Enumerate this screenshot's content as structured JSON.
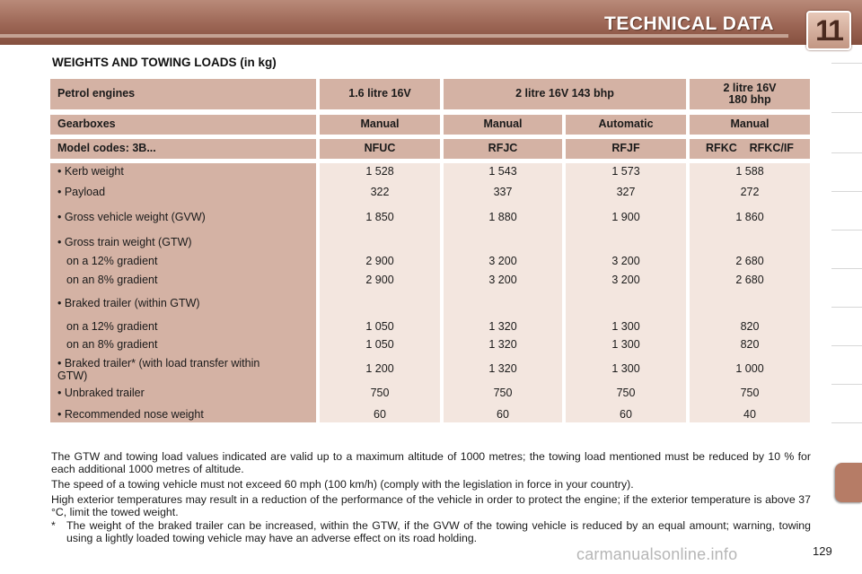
{
  "header": {
    "title": "TECHNICAL DATA",
    "chapter_number": "11"
  },
  "section_title": "WEIGHTS AND TOWING LOADS (in kg)",
  "table": {
    "engines_label": "Petrol engines",
    "engines": [
      "1.6 litre 16V",
      "2 litre 16V 143 bhp",
      "2 litre 16V\n180 bhp"
    ],
    "gearboxes_label": "Gearboxes",
    "gearboxes": [
      "Manual",
      "Manual",
      "Automatic",
      "Manual"
    ],
    "model_codes_label": "Model codes: 3B...",
    "model_codes": [
      "NFUC",
      "RFJC",
      "RFJF",
      "RFKC    RFKC/IF"
    ],
    "rows": [
      {
        "label": "• Kerb weight",
        "values": [
          "1 528",
          "1 543",
          "1 573",
          "1 588"
        ]
      },
      {
        "label": "• Payload",
        "values": [
          "322",
          "337",
          "327",
          "272"
        ]
      },
      {
        "label": "• Gross vehicle weight (GVW)",
        "values": [
          "1 850",
          "1 880",
          "1 900",
          "1 860"
        ]
      },
      {
        "label": "• Gross train weight (GTW)",
        "values": [
          "",
          "",
          "",
          ""
        ]
      },
      {
        "label": "on a 12% gradient",
        "values": [
          "2 900",
          "3 200",
          "3 200",
          "2 680"
        ]
      },
      {
        "label": "on an 8% gradient",
        "values": [
          "2 900",
          "3 200",
          "3 200",
          "2 680"
        ]
      },
      {
        "label": "• Braked trailer (within GTW)",
        "values": [
          "",
          "",
          "",
          ""
        ]
      },
      {
        "label": "on a 12% gradient",
        "values": [
          "1 050",
          "1 320",
          "1 300",
          "820"
        ]
      },
      {
        "label": "on an 8% gradient",
        "values": [
          "1 050",
          "1 320",
          "1 300",
          "820"
        ]
      },
      {
        "label": "• Braked trailer* (with load transfer within\nGTW)",
        "values": [
          "1 200",
          "1 320",
          "1 300",
          "1 000"
        ]
      },
      {
        "label": "• Unbraked trailer",
        "values": [
          "750",
          "750",
          "750",
          "750"
        ]
      },
      {
        "label": "• Recommended nose weight",
        "values": [
          "60",
          "60",
          "60",
          "40"
        ]
      }
    ]
  },
  "notes": [
    "The GTW and towing load values indicated are valid up to a maximum altitude of 1000 metres; the towing load mentioned must be reduced by 10 % for each additional 1000 metres of altitude.",
    "The speed of a towing vehicle must not exceed 60 mph (100 km/h) (comply with the legislation in force in your country).",
    "High exterior temperatures may result in a reduction of the performance of the vehicle in order to protect the engine; if the exterior temperature is above 37 °C, limit the towed weight."
  ],
  "footnote": {
    "marker": "*",
    "text": "The weight of the braked trailer can be increased, within the GTW, if the GVW of the towing vehicle is reduced by an equal amount; warning, towing using a lightly loaded towing vehicle may have an adverse effect on its road holding."
  },
  "page_number": "129",
  "watermark": "carmanualsonline.info",
  "colors": {
    "header_band": "#9c6655",
    "table_header": "#d4b2a4",
    "table_body": "#f3e6df"
  }
}
